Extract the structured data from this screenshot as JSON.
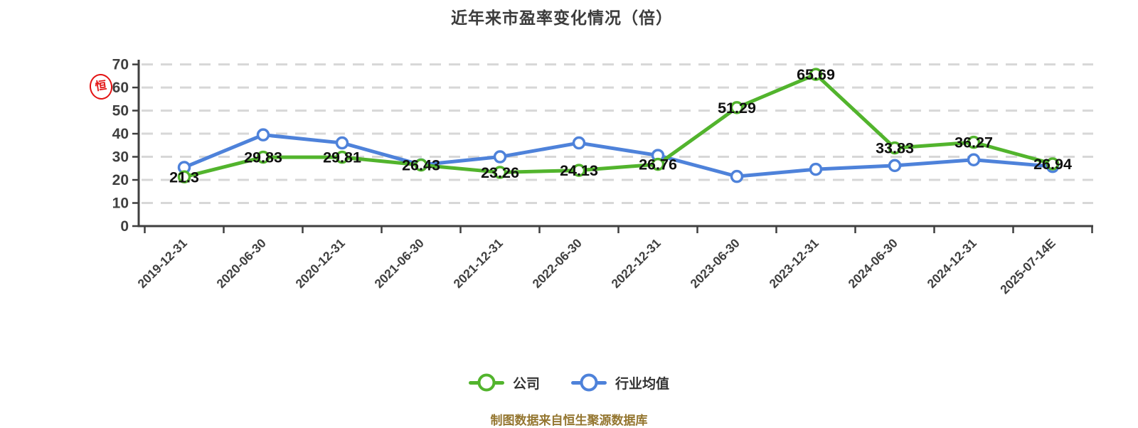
{
  "title": {
    "text": "近年来市盈率变化情况（倍）"
  },
  "seal": {
    "char": "恒",
    "color": "#e31313"
  },
  "footer": {
    "source_note": "制图数据来自恒生聚源数据库",
    "color": "#947630"
  },
  "colors": {
    "company_green": "#52b42d",
    "industry_blue": "#4e82da",
    "axis_gray": "#3f3f3f",
    "gridline_gray": "#d7d7d7",
    "data_label_black": "#101010"
  },
  "chart_data": {
    "type": "line",
    "title": "近年来市盈率变化情况（倍）",
    "categories": [
      "2019-12-31",
      "2020-06-30",
      "2020-12-31",
      "2021-06-30",
      "2021-12-31",
      "2022-06-30",
      "2022-12-31",
      "2023-06-30",
      "2023-12-31",
      "2024-06-30",
      "2024-12-31",
      "2025-07-14E"
    ],
    "series": [
      {
        "name": "公司",
        "color": "#52b42d",
        "values": [
          21.3,
          29.83,
          29.81,
          26.43,
          23.26,
          24.13,
          26.76,
          51.29,
          65.69,
          33.83,
          36.27,
          26.94
        ],
        "point_labels": [
          "21.3",
          "29.83",
          "29.81",
          "26.43",
          "23.26",
          "24.13",
          "26.76",
          "51.29",
          "65.69",
          "33.83",
          "36.27",
          "26.94"
        ],
        "labels_shown": true
      },
      {
        "name": "行业均值",
        "color": "#4e82da",
        "values": [
          25.4,
          39.5,
          36.0,
          26.5,
          30.0,
          36.0,
          30.6,
          21.5,
          24.6,
          26.2,
          28.7,
          25.8
        ],
        "labels_shown": false,
        "values_estimated": true
      }
    ],
    "ylim": [
      0,
      70
    ],
    "yticks": [
      0,
      10,
      20,
      30,
      40,
      50,
      60,
      70
    ],
    "xlabel": "",
    "ylabel": "",
    "grid": "horizontal-dashed",
    "x_tick_label_rotation_deg": 45,
    "legend_position": "bottom"
  }
}
